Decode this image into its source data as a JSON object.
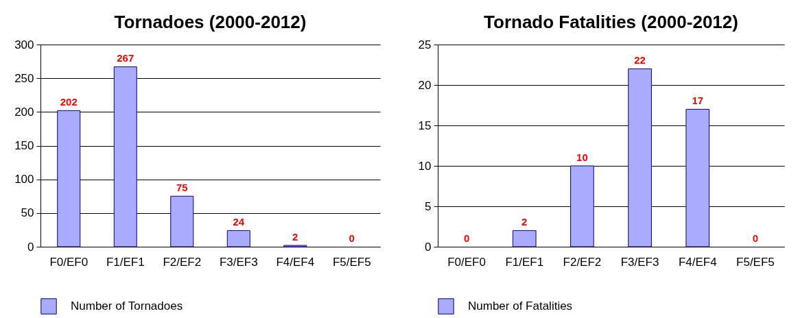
{
  "chart_data": [
    {
      "type": "bar",
      "title": "Tornadoes (2000-2012)",
      "categories": [
        "F0/EF0",
        "F1/EF1",
        "F2/EF2",
        "F3/EF3",
        "F4/EF4",
        "F5/EF5"
      ],
      "series": [
        {
          "name": "Number of Tornadoes",
          "color": "#aaaaff",
          "values": [
            202,
            267,
            75,
            24,
            2,
            0
          ]
        }
      ],
      "ylim": [
        0,
        300
      ],
      "yticks": [
        0,
        50,
        100,
        150,
        200,
        250,
        300
      ],
      "grid": "y",
      "legend": "bottom",
      "data_labels": true
    },
    {
      "type": "bar",
      "title": "Tornado Fatalities (2000-2012)",
      "categories": [
        "F0/EF0",
        "F1/EF1",
        "F2/EF2",
        "F3/EF3",
        "F4/EF4",
        "F5/EF5"
      ],
      "series": [
        {
          "name": "Number of Fatalities",
          "color": "#aaaaff",
          "values": [
            0,
            2,
            10,
            22,
            17,
            0
          ]
        }
      ],
      "ylim": [
        0,
        25
      ],
      "yticks": [
        0,
        5,
        10,
        15,
        20,
        25
      ],
      "grid": "y",
      "legend": "bottom",
      "data_labels": true
    }
  ]
}
